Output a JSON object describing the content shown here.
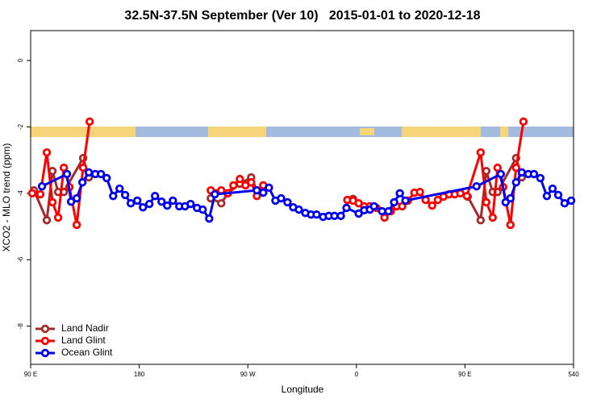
{
  "chart_data": {
    "type": "line",
    "title": "32.5N-37.5N September (Ver 10)   2015-01-01 to 2020-12-18",
    "x_label": "Longitude",
    "y_label": "XCO2 - MLO trend (ppm)",
    "xlim": [
      90,
      540
    ],
    "ylim": [
      -9.15,
      0.9
    ],
    "xticks": [
      {
        "value": 90,
        "label": "90 E"
      },
      180,
      {
        "value": 270,
        "label": "90 W"
      },
      {
        "value": 360,
        "label": "0"
      },
      {
        "value": 450,
        "label": "90 E"
      },
      540
    ],
    "yticks": [
      0,
      -2,
      -4,
      -6,
      -8
    ],
    "legend": "bottom-left",
    "series": [
      {
        "name": "Land Nadir",
        "color": "#a52a2a",
        "x": [
          92.7,
          103.4,
          108.1,
          112.8,
          117.5,
          133.5,
          138.2,
          null,
          239.3,
          248.0,
          253.4,
          263.4,
          272.8,
          277.5,
          null,
          357.2,
          null,
          452.3,
          463.0,
          467.7,
          473.0,
          477.0,
          492.4,
          497.1
        ],
        "values": [
          -3.91,
          -4.81,
          -3.33,
          -3.96,
          -3.96,
          -2.94,
          -3.52,
          null,
          -4.15,
          -4.3,
          -4.0,
          -3.71,
          -3.52,
          -3.91,
          null,
          -4.17,
          null,
          -4.1,
          -4.81,
          -3.33,
          -3.96,
          -3.96,
          -2.94,
          -3.52
        ]
      },
      {
        "name": "Land Glint",
        "color": "#ff0000",
        "x": [
          91.3,
          98.0,
          103.4,
          108.1,
          112.8,
          117.5,
          122.1,
          128.2,
          133.5,
          138.9,
          null,
          239.3,
          248.0,
          253.4,
          258.1,
          263.4,
          268.1,
          272.8,
          277.5,
          282.8,
          null,
          352.5,
          357.2,
          361.9,
          366.5,
          371.2,
          376.6,
          383.3,
          388.6,
          393.3,
          398.0,
          402.7,
          408.1,
          412.7,
          417.4,
          422.8,
          427.5,
          432.2,
          436.9,
          441.5,
          446.2,
          451.6,
          463.0,
          467.7,
          473.0,
          477.0,
          481.7,
          487.7,
          492.4,
          498.5
        ],
        "values": [
          -4.0,
          -4.03,
          -2.77,
          -4.27,
          -4.73,
          -3.23,
          -3.81,
          -4.95,
          -3.23,
          -1.84,
          null,
          -3.91,
          -3.91,
          -4.0,
          -3.76,
          -3.57,
          -3.76,
          -3.67,
          -4.08,
          -3.76,
          null,
          -4.2,
          -4.22,
          -4.3,
          -4.39,
          -4.39,
          -4.44,
          -4.73,
          -4.54,
          -4.39,
          -4.39,
          -4.22,
          -3.98,
          -3.96,
          -4.2,
          -4.37,
          -4.2,
          -4.1,
          -4.03,
          -4.03,
          -4.0,
          -4.08,
          -2.77,
          -4.27,
          -4.73,
          -3.23,
          -3.81,
          -4.95,
          -3.23,
          -1.84
        ]
      },
      {
        "name": "Ocean Glint",
        "color": "#0000ee",
        "x": [
          99.4,
          120.1,
          123.5,
          128.2,
          132.9,
          138.2,
          143.6,
          148.3,
          153.0,
          158.4,
          163.7,
          168.3,
          173.0,
          178.4,
          183.1,
          188.4,
          193.1,
          198.5,
          203.2,
          207.9,
          213.2,
          217.9,
          222.6,
          227.9,
          232.6,
          238.0,
          242.7,
          277.5,
          282.8,
          287.5,
          292.9,
          297.6,
          302.9,
          307.6,
          312.3,
          317.7,
          322.4,
          327.0,
          332.4,
          337.1,
          341.8,
          347.1,
          351.8,
          361.9,
          366.5,
          371.2,
          374.6,
          381.3,
          386.6,
          391.3,
          396.0,
          400.7,
          459.6,
          479.7,
          483.7,
          487.7,
          492.4,
          497.1,
          502.5,
          507.2,
          512.5,
          517.9,
          522.6,
          527.3,
          532.6,
          538.0
        ],
        "values": [
          -3.79,
          -3.42,
          -4.25,
          -4.15,
          -3.67,
          -3.37,
          -3.42,
          -3.42,
          -3.54,
          -4.08,
          -3.86,
          -4.05,
          -4.3,
          -4.22,
          -4.42,
          -4.32,
          -4.08,
          -4.25,
          -4.37,
          -4.22,
          -4.39,
          -4.39,
          -4.32,
          -4.44,
          -4.49,
          -4.76,
          -4.03,
          -3.91,
          -3.98,
          -3.83,
          -4.22,
          -4.15,
          -4.27,
          -4.42,
          -4.49,
          -4.59,
          -4.64,
          -4.64,
          -4.71,
          -4.68,
          -4.68,
          -4.68,
          -4.44,
          -4.61,
          -4.51,
          -4.49,
          -4.39,
          -4.54,
          -4.54,
          -4.27,
          -4.0,
          -4.22,
          -3.79,
          -3.42,
          -4.27,
          -4.15,
          -3.67,
          -3.37,
          -3.42,
          -3.42,
          -3.54,
          -4.08,
          -3.86,
          -4.05,
          -4.3,
          -4.22
        ]
      }
    ]
  }
}
